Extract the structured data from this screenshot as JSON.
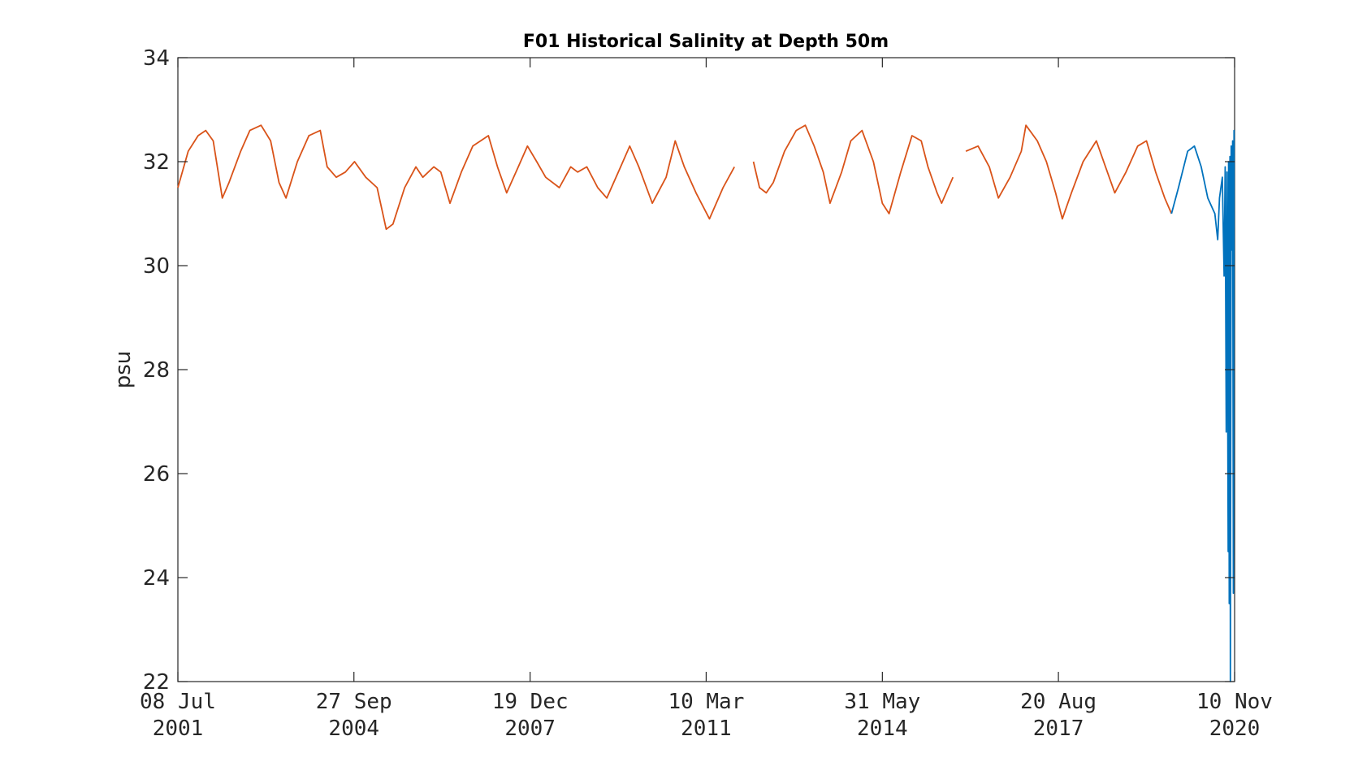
{
  "chart_data": {
    "type": "line",
    "title": "F01 Historical Salinity at Depth 50m",
    "xlabel": "",
    "ylabel": "psu",
    "ylim": [
      22,
      34
    ],
    "xlim": [
      "2001-07-08",
      "2020-11-10"
    ],
    "yticks": [
      22,
      24,
      26,
      28,
      30,
      32,
      34
    ],
    "xticks": [
      {
        "date": "2001-07-08",
        "line1": "08 Jul",
        "line2": "2001"
      },
      {
        "date": "2004-09-27",
        "line1": "27 Sep",
        "line2": "2004"
      },
      {
        "date": "2007-12-19",
        "line1": "19 Dec",
        "line2": "2007"
      },
      {
        "date": "2011-03-10",
        "line1": "10 Mar",
        "line2": "2011"
      },
      {
        "date": "2014-05-31",
        "line1": "31 May",
        "line2": "2014"
      },
      {
        "date": "2017-08-20",
        "line1": "20 Aug",
        "line2": "2017"
      },
      {
        "date": "2020-11-10",
        "line1": "10 Nov",
        "line2": "2020"
      }
    ],
    "grid": false,
    "legend": "none",
    "series": [
      {
        "color": "#D95319",
        "segments": [
          [
            [
              "2001-07-08",
              31.5
            ],
            [
              "2001-09-15",
              32.2
            ],
            [
              "2001-11-20",
              32.5
            ],
            [
              "2002-01-10",
              32.6
            ],
            [
              "2002-03-01",
              32.4
            ],
            [
              "2002-05-01",
              31.3
            ],
            [
              "2002-06-15",
              31.6
            ],
            [
              "2002-09-01",
              32.2
            ],
            [
              "2002-11-01",
              32.6
            ],
            [
              "2003-01-15",
              32.7
            ],
            [
              "2003-03-20",
              32.4
            ],
            [
              "2003-05-15",
              31.6
            ],
            [
              "2003-07-01",
              31.3
            ],
            [
              "2003-09-15",
              32.0
            ],
            [
              "2003-12-01",
              32.5
            ],
            [
              "2004-02-15",
              32.6
            ],
            [
              "2004-04-01",
              31.9
            ],
            [
              "2004-06-01",
              31.7
            ],
            [
              "2004-08-01",
              31.8
            ],
            [
              "2004-10-01",
              32.0
            ],
            [
              "2004-12-15",
              31.7
            ],
            [
              "2005-03-01",
              31.5
            ],
            [
              "2005-05-01",
              30.7
            ],
            [
              "2005-06-15",
              30.8
            ],
            [
              "2005-09-01",
              31.5
            ],
            [
              "2005-11-15",
              31.9
            ],
            [
              "2006-01-01",
              31.7
            ],
            [
              "2006-03-15",
              31.9
            ],
            [
              "2006-05-01",
              31.8
            ],
            [
              "2006-07-01",
              31.2
            ],
            [
              "2006-09-15",
              31.8
            ],
            [
              "2006-12-01",
              32.3
            ],
            [
              "2007-03-15",
              32.5
            ],
            [
              "2007-05-15",
              31.9
            ],
            [
              "2007-07-15",
              31.4
            ],
            [
              "2007-10-01",
              31.9
            ],
            [
              "2007-12-01",
              32.3
            ],
            [
              "2008-02-01",
              32.0
            ],
            [
              "2008-04-01",
              31.7
            ],
            [
              "2008-07-01",
              31.5
            ],
            [
              "2008-09-15",
              31.9
            ],
            [
              "2008-11-01",
              31.8
            ],
            [
              "2009-01-01",
              31.9
            ],
            [
              "2009-03-15",
              31.5
            ],
            [
              "2009-05-15",
              31.3
            ],
            [
              "2009-08-15",
              31.9
            ],
            [
              "2009-10-15",
              32.3
            ],
            [
              "2009-12-15",
              31.9
            ],
            [
              "2010-03-15",
              31.2
            ],
            [
              "2010-06-15",
              31.7
            ],
            [
              "2010-08-15",
              32.4
            ],
            [
              "2010-10-15",
              31.9
            ],
            [
              "2011-01-01",
              31.4
            ],
            [
              "2011-04-01",
              30.9
            ],
            [
              "2011-07-01",
              31.5
            ],
            [
              "2011-09-15",
              31.9
            ]
          ],
          [
            [
              "2012-01-20",
              32.0
            ],
            [
              "2012-03-01",
              31.5
            ],
            [
              "2012-04-15",
              31.4
            ],
            [
              "2012-06-01",
              31.6
            ],
            [
              "2012-08-15",
              32.2
            ],
            [
              "2012-11-01",
              32.6
            ],
            [
              "2013-01-01",
              32.7
            ],
            [
              "2013-03-01",
              32.3
            ],
            [
              "2013-05-01",
              31.8
            ],
            [
              "2013-06-15",
              31.2
            ],
            [
              "2013-09-01",
              31.8
            ],
            [
              "2013-11-01",
              32.4
            ],
            [
              "2014-01-15",
              32.6
            ],
            [
              "2014-04-01",
              32.0
            ],
            [
              "2014-05-31",
              31.2
            ],
            [
              "2014-07-15",
              31.0
            ],
            [
              "2014-10-01",
              31.8
            ],
            [
              "2014-12-15",
              32.5
            ],
            [
              "2015-02-15",
              32.4
            ],
            [
              "2015-04-01",
              31.9
            ],
            [
              "2015-06-01",
              31.4
            ],
            [
              "2015-07-01",
              31.2
            ],
            [
              "2015-09-15",
              31.7
            ]
          ],
          [
            [
              "2015-12-10",
              32.2
            ],
            [
              "2016-03-01",
              32.3
            ],
            [
              "2016-05-15",
              31.9
            ],
            [
              "2016-07-15",
              31.3
            ],
            [
              "2016-10-01",
              31.7
            ],
            [
              "2016-12-15",
              32.2
            ],
            [
              "2017-01-15",
              32.7
            ],
            [
              "2017-04-01",
              32.4
            ],
            [
              "2017-06-01",
              32.0
            ],
            [
              "2017-08-01",
              31.4
            ],
            [
              "2017-09-15",
              30.9
            ],
            [
              "2017-11-15",
              31.4
            ],
            [
              "2018-02-01",
              32.0
            ],
            [
              "2018-05-01",
              32.4
            ],
            [
              "2018-07-01",
              31.9
            ],
            [
              "2018-09-01",
              31.4
            ],
            [
              "2018-11-15",
              31.8
            ],
            [
              "2019-02-01",
              32.3
            ],
            [
              "2019-04-01",
              32.4
            ],
            [
              "2019-06-01",
              31.8
            ],
            [
              "2019-08-01",
              31.3
            ],
            [
              "2019-09-15",
              31.0
            ]
          ]
        ]
      },
      {
        "color": "#0072BD",
        "segments": [
          [
            [
              "2019-09-15",
              31.0
            ],
            [
              "2019-11-01",
              31.5
            ],
            [
              "2020-01-01",
              32.2
            ],
            [
              "2020-02-15",
              32.3
            ],
            [
              "2020-04-01",
              31.9
            ],
            [
              "2020-05-15",
              31.3
            ],
            [
              "2020-07-01",
              31.0
            ],
            [
              "2020-07-20",
              30.5
            ],
            [
              "2020-08-01",
              31.3
            ],
            [
              "2020-08-20",
              31.7
            ],
            [
              "2020-09-01",
              29.8
            ],
            [
              "2020-09-08",
              31.9
            ],
            [
              "2020-09-15",
              26.8
            ],
            [
              "2020-09-20",
              31.8
            ],
            [
              "2020-09-28",
              24.5
            ],
            [
              "2020-10-01",
              32.0
            ],
            [
              "2020-10-05",
              23.5
            ],
            [
              "2020-10-10",
              32.1
            ],
            [
              "2020-10-13",
              22.0
            ],
            [
              "2020-10-18",
              32.3
            ],
            [
              "2020-10-24",
              30.3
            ],
            [
              "2020-10-28",
              32.4
            ],
            [
              "2020-11-02",
              23.7
            ],
            [
              "2020-11-06",
              32.6
            ],
            [
              "2020-11-10",
              32.6
            ]
          ]
        ]
      }
    ]
  }
}
